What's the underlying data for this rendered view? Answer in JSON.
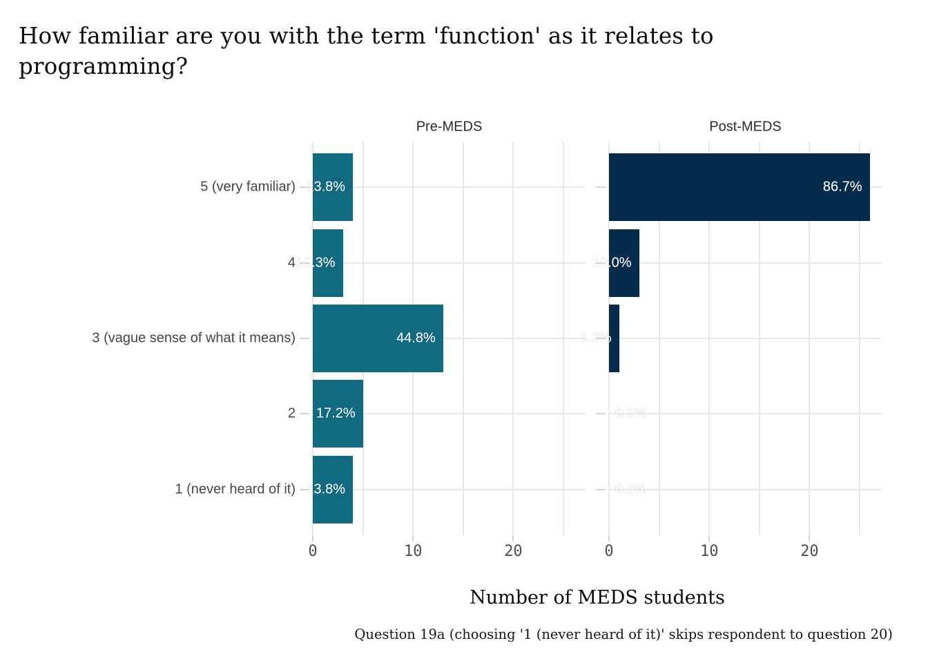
{
  "title": "How familiar are you with the term 'function' as it relates to programming?",
  "caption": "Question 19a (choosing '1 (never heard of it)' skips respondent to question 20)",
  "axis": {
    "x_title": "Number of MEDS students",
    "x_tick_labels": [
      "0",
      "10",
      "20"
    ]
  },
  "colors": {
    "pre_bar": "#106a80",
    "post_bar": "#052b4d",
    "gridline": "#e8e8e8",
    "tick": "#d4d4d4",
    "label_text": "#ffffff",
    "axis_text": "#454545",
    "background": "#ffffff"
  },
  "chart_data": {
    "type": "bar",
    "orientation": "horizontal",
    "title": "How familiar are you with the term 'function' as it relates to programming?",
    "xlabel": "Number of MEDS students",
    "ylabel": "",
    "categories": [
      "5 (very familiar)",
      "4",
      "3 (vague sense of what it means)",
      "2",
      "1 (never heard of it)"
    ],
    "x_ticks": [
      0,
      10,
      20
    ],
    "x_gridlines": [
      0,
      5,
      10,
      15,
      20,
      25
    ],
    "xlim": [
      0,
      27.2
    ],
    "grid": true,
    "facets": [
      {
        "name": "Pre-MEDS",
        "color": "#106a80",
        "values": [
          4,
          3,
          13,
          5,
          4
        ],
        "percent_labels": [
          "13.8%",
          "10.3%",
          "44.8%",
          "17.2%",
          "13.8%"
        ]
      },
      {
        "name": "Post-MEDS",
        "color": "#052b4d",
        "values": [
          26,
          3,
          1,
          0,
          0
        ],
        "percent_labels": [
          "86.7%",
          "10.0%",
          "3.3%",
          "0.0%",
          "0.0%"
        ]
      }
    ]
  }
}
